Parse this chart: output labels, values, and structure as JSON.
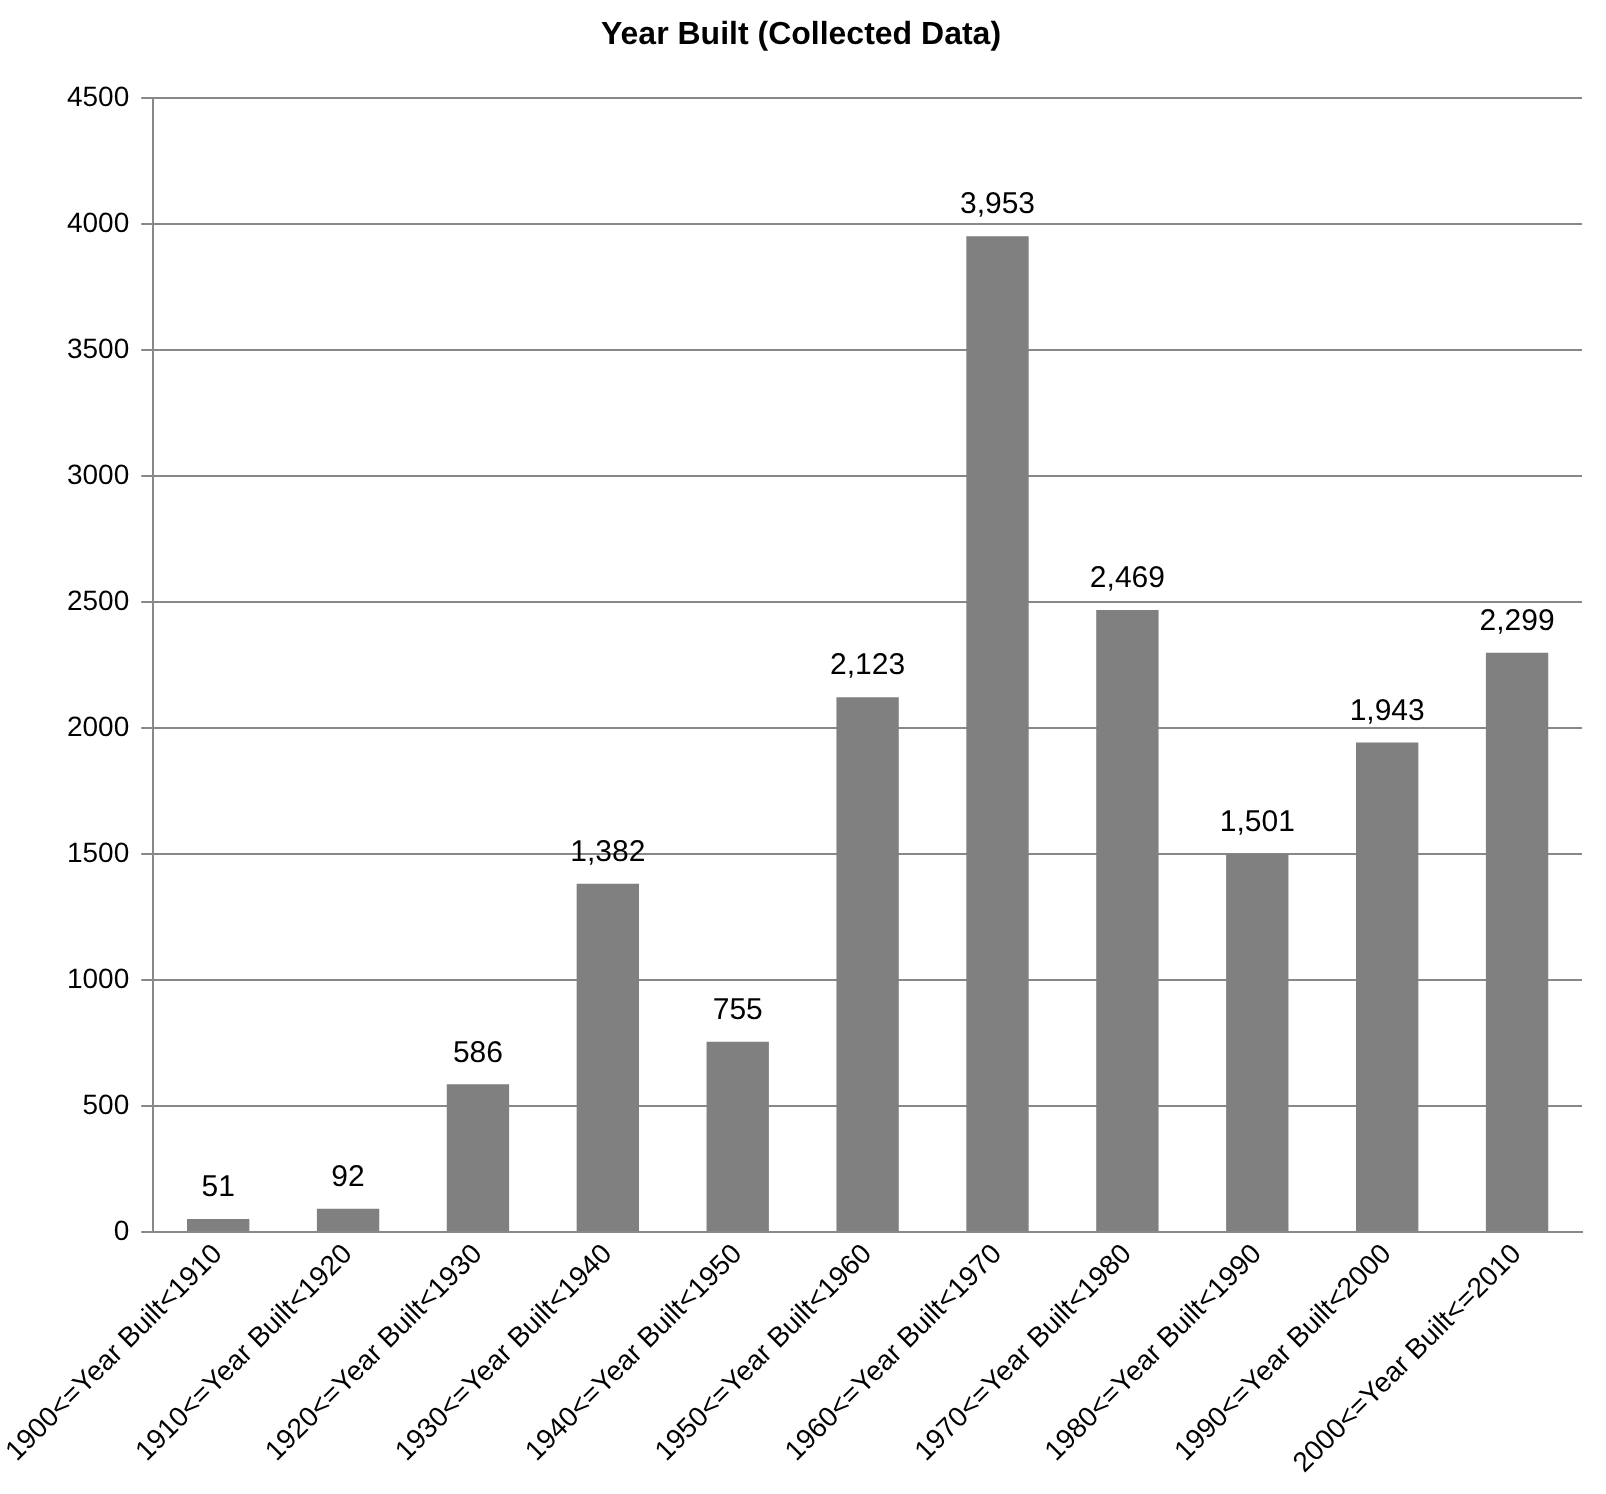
{
  "chart_data": {
    "type": "bar",
    "title": "Year Built (Collected Data)",
    "categories": [
      "1900<=Year Built<1910",
      "1910<=Year Built<1920",
      "1920<=Year Built<1930",
      "1930<=Year Built<1940",
      "1940<=Year Built<1950",
      "1950<=Year Built<1960",
      "1960<=Year Built<1970",
      "1970<=Year Built<1980",
      "1980<=Year Built<1990",
      "1990<=Year Built<2000",
      "2000<=Year Built<=2010"
    ],
    "values": [
      51,
      92,
      586,
      1382,
      755,
      2123,
      3953,
      2469,
      1501,
      1943,
      2299
    ],
    "value_labels": [
      "51",
      "92",
      "586",
      "1,382",
      "755",
      "2,123",
      "3,953",
      "2,469",
      "1,501",
      "1,943",
      "2,299"
    ],
    "color": "#808080",
    "ylim": [
      0,
      4500
    ],
    "yticks": [
      0,
      500,
      1000,
      1500,
      2000,
      2500,
      3000,
      3500,
      4000,
      4500
    ],
    "grid": "y",
    "legend": false
  }
}
